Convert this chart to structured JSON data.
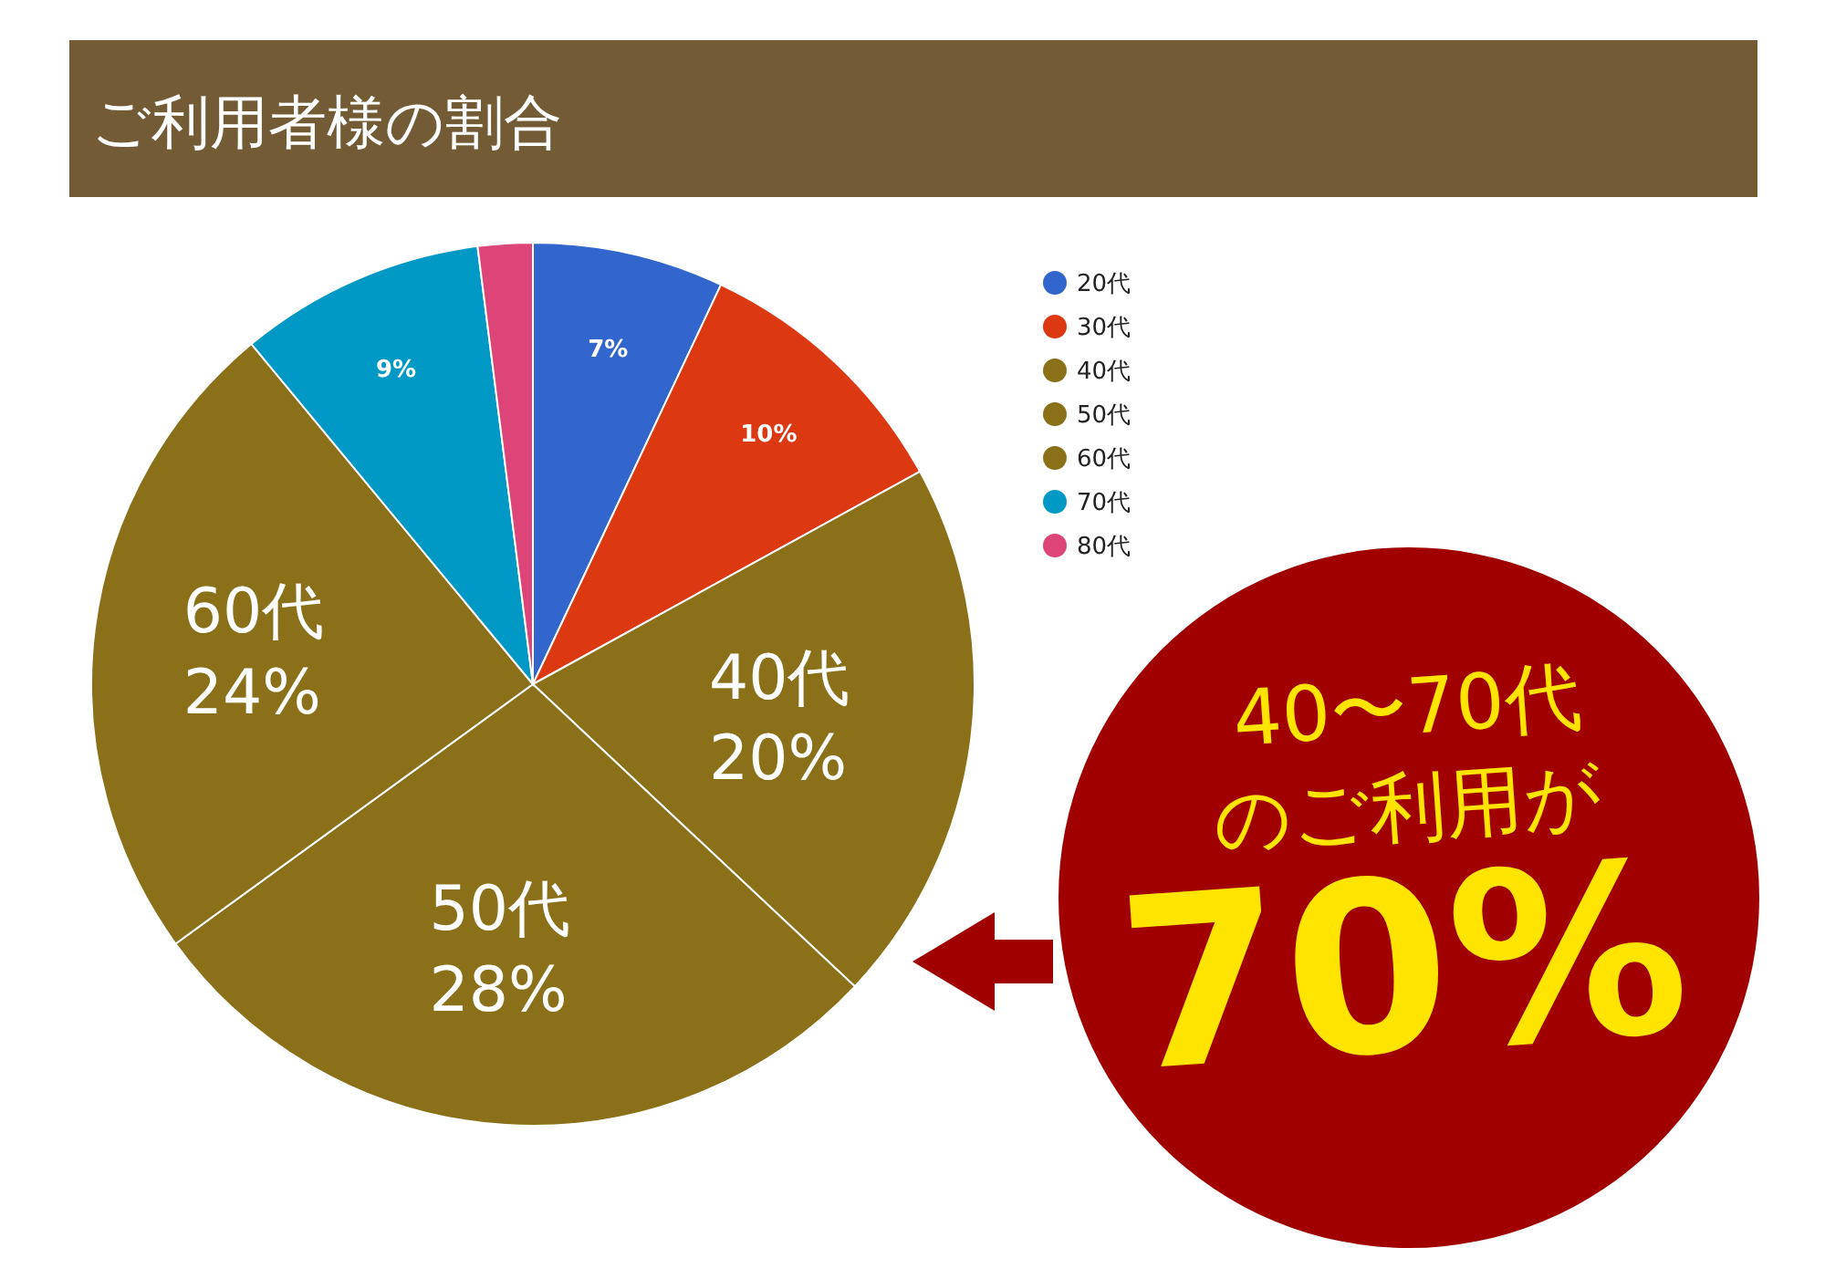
{
  "chart_data": {
    "type": "pie",
    "title": "ご利用者様の割合",
    "categories": [
      "20代",
      "30代",
      "40代",
      "50代",
      "60代",
      "70代",
      "80代"
    ],
    "values": [
      7,
      10,
      20,
      28,
      24,
      9,
      2
    ],
    "colors": [
      "#3366cc",
      "#dc3912",
      "#8a7019",
      "#8a7019",
      "#8a7019",
      "#0099c6",
      "#dd4477"
    ],
    "value_labels": [
      "7%",
      "10%",
      "40代\n20%",
      "50代\n28%",
      "60代\n24%",
      "9%",
      null
    ],
    "legend": "top right",
    "annotations": [
      "40〜70代",
      "のご利用が",
      "70%"
    ]
  }
}
